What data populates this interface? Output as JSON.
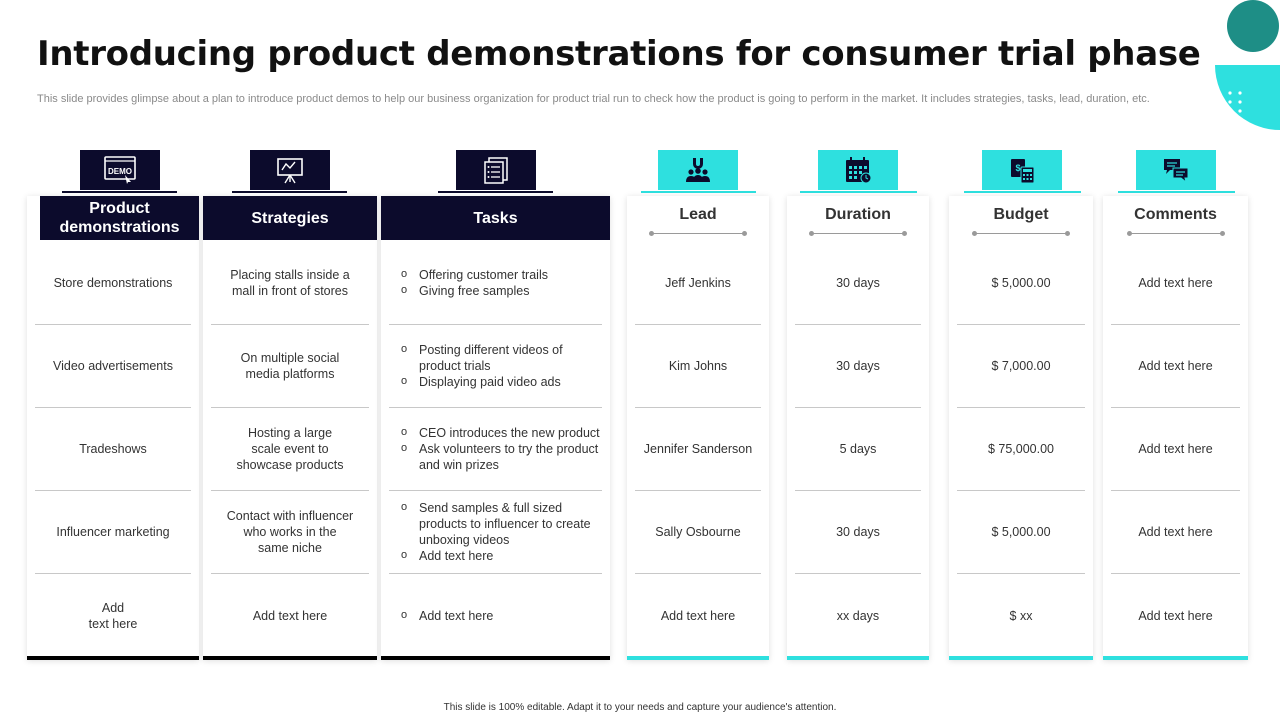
{
  "title": "Introducing product demonstrations for consumer trial phase",
  "subtitle": "This slide provides glimpse about a plan to introduce product demos to help our business organization for product trial run to check how the product is going to perform in the market. It includes strategies, tasks, lead, duration, etc.",
  "footer": "This slide is 100% editable. Adapt it to your needs and capture your audience's attention.",
  "colors": {
    "navy": "#0c0b2c",
    "teal": "#2ee0df",
    "dark_teal": "#1e8e86"
  },
  "columns": [
    {
      "header": "Product demonstrations",
      "icon": "demo-screen-icon",
      "icon_text": "DEMO",
      "cells": [
        [
          "Store demonstrations"
        ],
        [
          "Video advertisements"
        ],
        [
          "Tradeshows"
        ],
        [
          "Influencer  marketing"
        ],
        [
          "Add",
          "text here"
        ]
      ]
    },
    {
      "header": "Strategies",
      "icon": "presentation-board-icon",
      "cells": [
        [
          "Placing stalls inside a",
          "mall in front of stores"
        ],
        [
          "On multiple social",
          "media platforms"
        ],
        [
          "Hosting a large",
          "scale event to",
          "showcase products"
        ],
        [
          "Contact with influencer",
          "who works in the",
          "same niche"
        ],
        [
          "Add text here"
        ]
      ]
    },
    {
      "header": "Tasks",
      "icon": "task-list-icon",
      "cells": [
        [
          "Offering  customer trails",
          "Giving free  samples"
        ],
        [
          "Posting different videos of product trials",
          "Displaying paid video ads"
        ],
        [
          "CEO introduces the new product",
          "Ask volunteers  to try the product and win prizes"
        ],
        [
          "Send samples & full sized products to influencer to create unboxing videos",
          "Add text here"
        ],
        [
          "Add text here"
        ]
      ]
    },
    {
      "header": "Lead",
      "icon": "team-magnet-icon",
      "cells": [
        [
          "Jeff Jenkins"
        ],
        [
          "Kim Johns"
        ],
        [
          "Jennifer  Sanderson"
        ],
        [
          "Sally Osbourne"
        ],
        [
          "Add text here"
        ]
      ]
    },
    {
      "header": "Duration",
      "icon": "calendar-icon",
      "cells": [
        [
          "30 days"
        ],
        [
          "30 days"
        ],
        [
          "5 days"
        ],
        [
          "30 days"
        ],
        [
          "xx days"
        ]
      ]
    },
    {
      "header": "Budget",
      "icon": "budget-calculator-icon",
      "cells": [
        [
          "$ 5,000.00"
        ],
        [
          "$ 7,000.00"
        ],
        [
          "$ 75,000.00"
        ],
        [
          "$ 5,000.00"
        ],
        [
          "$ xx"
        ]
      ]
    },
    {
      "header": "Comments",
      "icon": "chat-bubbles-icon",
      "cells": [
        [
          "Add text here"
        ],
        [
          "Add text here"
        ],
        [
          "Add text here"
        ],
        [
          "Add text here"
        ],
        [
          "Add text here"
        ]
      ]
    }
  ]
}
